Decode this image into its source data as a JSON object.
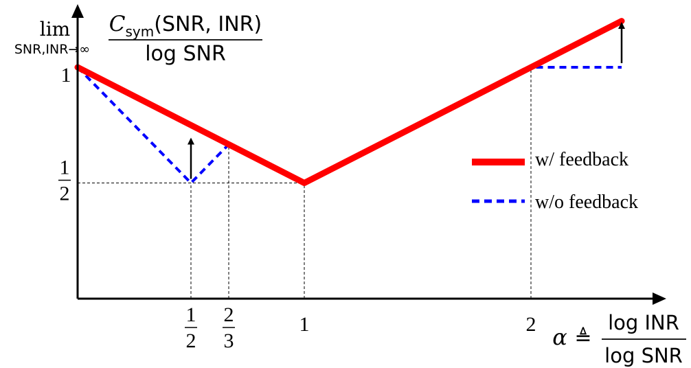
{
  "chart_data": {
    "type": "line",
    "xlim": [
      0,
      2.4
    ],
    "ylim": [
      0,
      1.2
    ],
    "grid": false,
    "legend_position": "right",
    "ylabel": {
      "lim": "lim",
      "lim_sub": "SNR,INR→∞",
      "numerator_C": "C",
      "numerator_sub": "sym",
      "numerator_args": "(SNR, INR)",
      "denominator": "log SNR"
    },
    "xlabel": {
      "alpha": "α",
      "defeq": "≜",
      "numerator": "log INR",
      "denominator": "log SNR"
    },
    "x_ticks": [
      {
        "value": 0.5,
        "type": "fraction",
        "num": "1",
        "den": "2"
      },
      {
        "value": 0.6667,
        "type": "fraction",
        "num": "2",
        "den": "3"
      },
      {
        "value": 1,
        "type": "plain",
        "label": "1"
      },
      {
        "value": 2,
        "type": "plain",
        "label": "2"
      }
    ],
    "y_ticks": [
      {
        "value": 1,
        "type": "plain",
        "label": "1"
      },
      {
        "value": 0.5,
        "type": "fraction",
        "num": "1",
        "den": "2"
      }
    ],
    "series": [
      {
        "name": "w/ feedback",
        "color": "#ff0000",
        "style": "solid",
        "points": [
          [
            0,
            1
          ],
          [
            1,
            0.5
          ],
          [
            2.4,
            1.2
          ]
        ]
      },
      {
        "name": "w/o feedback",
        "color": "#0000ff",
        "style": "dashed",
        "points": [
          [
            0,
            1
          ],
          [
            0.5,
            0.5
          ],
          [
            0.6667,
            0.6667
          ],
          [
            1,
            0.5
          ],
          [
            2,
            1
          ],
          [
            2.4,
            1
          ]
        ]
      }
    ],
    "guides": [
      {
        "from": [
          0,
          0.5
        ],
        "to": [
          1,
          0.5
        ]
      },
      {
        "from": [
          0.5,
          0
        ],
        "to": [
          0.5,
          0.5
        ]
      },
      {
        "from": [
          0.6667,
          0
        ],
        "to": [
          0.6667,
          0.6667
        ]
      },
      {
        "from": [
          1,
          0
        ],
        "to": [
          1,
          0.5
        ]
      },
      {
        "from": [
          2,
          0
        ],
        "to": [
          2,
          1
        ]
      }
    ],
    "improvement_arrows": [
      {
        "x": 0.5,
        "from_y": 0.5
      },
      {
        "x": 2.4,
        "from_y": 1
      }
    ]
  }
}
